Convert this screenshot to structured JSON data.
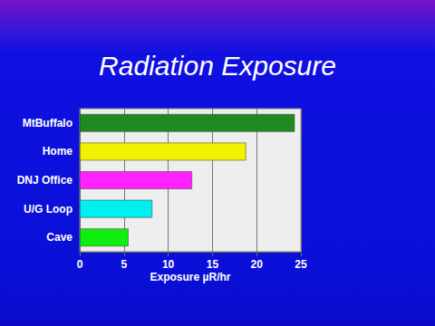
{
  "chart_data": {
    "type": "bar",
    "title": "Radiation Exposure",
    "orientation": "horizontal",
    "categories": [
      "MtBuffalo",
      "Home",
      "DNJ Office",
      "U/G Loop",
      "Cave"
    ],
    "values": [
      24.3,
      18.8,
      12.7,
      8.2,
      5.5
    ],
    "colors": [
      "#1f8a1f",
      "#f2f200",
      "#ff22ff",
      "#00f0f0",
      "#10ee10"
    ],
    "x_label": "Exposure µR/hr",
    "xlim": [
      0,
      25
    ],
    "xticks": [
      0,
      5,
      10,
      15,
      20,
      25
    ],
    "grid": true
  }
}
